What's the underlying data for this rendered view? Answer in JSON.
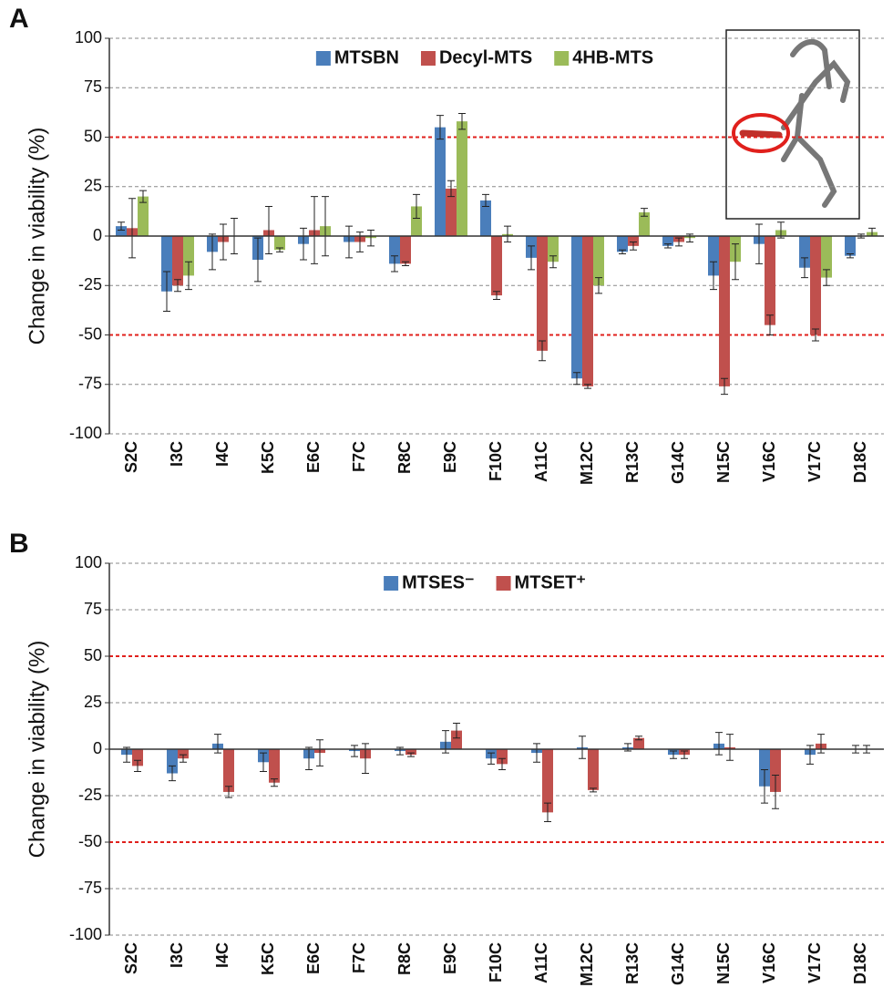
{
  "chart_data": [
    {
      "type": "bar",
      "panel_label": "A",
      "ylabel": "Change in viability (%)",
      "categories": [
        "S2C",
        "I3C",
        "I4C",
        "K5C",
        "E6C",
        "F7C",
        "R8C",
        "E9C",
        "F10C",
        "A11C",
        "M12C",
        "R13C",
        "G14C",
        "N15C",
        "V16C",
        "V17C",
        "D18C"
      ],
      "series": [
        {
          "name": "MTSBN",
          "color": "#4a7ebb",
          "values": [
            5,
            -28,
            -8,
            -12,
            -4,
            -3,
            -14,
            55,
            18,
            -11,
            -72,
            -8,
            -5,
            -20,
            -4,
            -16,
            -10
          ],
          "errors": [
            2,
            10,
            9,
            11,
            8,
            8,
            4,
            6,
            3,
            6,
            3,
            1,
            1,
            7,
            10,
            5,
            1
          ]
        },
        {
          "name": "Decyl-MTS",
          "color": "#c0504d",
          "values": [
            4,
            -25,
            -3,
            3,
            3,
            -3,
            -14,
            24,
            -30,
            -58,
            -76,
            -5,
            -3,
            -76,
            -45,
            -50,
            0
          ],
          "errors": [
            15,
            3,
            9,
            12,
            17,
            5,
            1,
            4,
            2,
            5,
            1,
            2,
            2,
            4,
            5,
            3,
            1
          ]
        },
        {
          "name": "4HB-MTS",
          "color": "#9bbb59",
          "values": [
            20,
            -20,
            0,
            -7,
            5,
            -1,
            15,
            58,
            1,
            -13,
            -25,
            12,
            -1,
            -13,
            3,
            -21,
            2
          ],
          "errors": [
            3,
            7,
            9,
            1,
            15,
            4,
            6,
            4,
            4,
            3,
            4,
            2,
            2,
            9,
            4,
            4,
            2
          ]
        }
      ],
      "ylim": [
        -100,
        100
      ],
      "yticks": [
        -100,
        -75,
        -50,
        -25,
        0,
        25,
        50,
        75,
        100
      ],
      "grid": true,
      "reference_lines": [
        -50,
        50
      ],
      "reference_color": "#e0201c",
      "legend": "top"
    },
    {
      "type": "bar",
      "panel_label": "B",
      "ylabel": "Change in viability (%)",
      "categories": [
        "S2C",
        "I3C",
        "I4C",
        "K5C",
        "E6C",
        "F7C",
        "R8C",
        "E9C",
        "F10C",
        "A11C",
        "M12C",
        "R13C",
        "G14C",
        "N15C",
        "V16C",
        "V17C",
        "D18C"
      ],
      "series": [
        {
          "name": "MTSES⁻",
          "color": "#4a7ebb",
          "values": [
            -3,
            -13,
            3,
            -7,
            -5,
            -1,
            -1,
            4,
            -5,
            -2,
            1,
            1,
            -3,
            3,
            -20,
            -3,
            0
          ],
          "errors": [
            4,
            4,
            5,
            5,
            6,
            3,
            2,
            6,
            3,
            5,
            6,
            2,
            2,
            6,
            9,
            5,
            2
          ]
        },
        {
          "name": "MTSET⁺",
          "color": "#c0504d",
          "values": [
            -9,
            -5,
            -23,
            -18,
            -2,
            -5,
            -3,
            10,
            -8,
            -34,
            -22,
            6,
            -3,
            1,
            -23,
            3,
            0
          ],
          "errors": [
            3,
            2,
            3,
            2,
            7,
            8,
            1,
            4,
            3,
            5,
            1,
            1,
            2,
            7,
            9,
            5,
            2
          ]
        }
      ],
      "ylim": [
        -100,
        100
      ],
      "yticks": [
        -100,
        -75,
        -50,
        -25,
        0,
        25,
        50,
        75,
        100
      ],
      "grid": true,
      "reference_lines": [
        -50,
        50
      ],
      "reference_color": "#e0201c",
      "legend": "top"
    }
  ]
}
